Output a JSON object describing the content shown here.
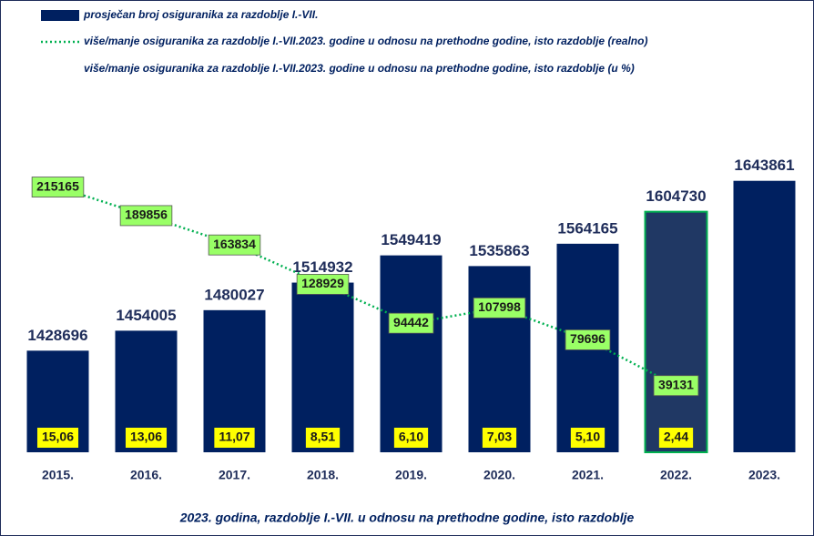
{
  "chart_data": {
    "type": "bar",
    "title": "2023. godina, razdoblje I.-VII. u odnosu na prethodne godine, isto razdoblje",
    "categories": [
      "2015.",
      "2016.",
      "2017.",
      "2018.",
      "2019.",
      "2020.",
      "2021.",
      "2022.",
      "2023."
    ],
    "ylim": [
      1300000,
      1700000
    ],
    "y2lim": [
      -20000,
      260000
    ],
    "series": [
      {
        "name": "prosječan broj osiguranika za razdoblje I.-VII.",
        "type": "bar",
        "color": "#002060",
        "colors": [
          "#002060",
          "#002060",
          "#002060",
          "#002060",
          "#002060",
          "#002060",
          "#002060",
          "#203864",
          "#002060"
        ],
        "edgecolors": [
          null,
          null,
          null,
          null,
          null,
          null,
          null,
          "#00b050",
          null
        ],
        "values": [
          1428696,
          1454005,
          1480027,
          1514932,
          1549419,
          1535863,
          1564165,
          1604730,
          1643861
        ]
      },
      {
        "name": "više/manje osiguranika za razdoblje I.-VII.2023. godine u odnosu na prethodne godine, isto razdoblje (realno)",
        "type": "line",
        "axis": "y2",
        "color": "#00b050",
        "label_color": "#99ff66",
        "values": [
          215165,
          189856,
          163834,
          128929,
          94442,
          107998,
          79696,
          39131,
          null
        ]
      },
      {
        "name": "više/manje osiguranika za razdoblje I.-VII.2023. godine u odnosu na prethodne godine, isto razdoblje (u %)",
        "type": "label",
        "color": "#ffff00",
        "values": [
          15.06,
          13.06,
          11.07,
          8.51,
          6.1,
          7.03,
          5.1,
          2.44,
          null
        ],
        "value_labels": [
          "15,06",
          "13,06",
          "11,07",
          "8,51",
          "6,10",
          "7,03",
          "5,10",
          "2,44",
          null
        ]
      }
    ]
  }
}
